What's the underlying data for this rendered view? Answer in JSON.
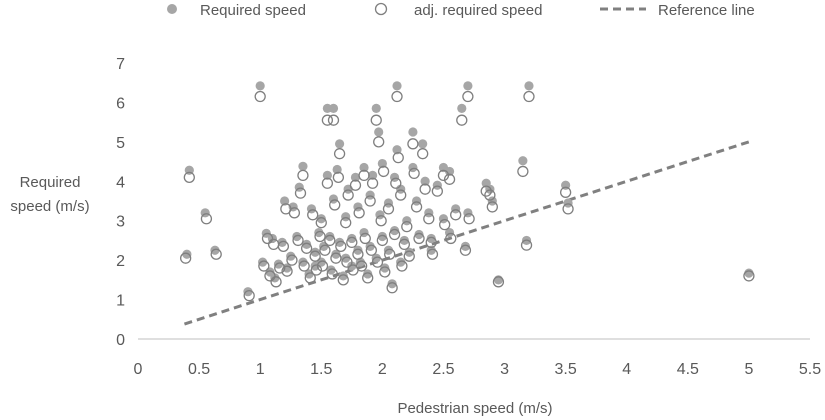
{
  "chart_data": {
    "type": "scatter",
    "xlabel": "Pedestrian speed (m/s)",
    "ylabel_lines": [
      "Required",
      "speed (m/s)"
    ],
    "xlim": [
      0,
      5.5
    ],
    "ylim": [
      0,
      7
    ],
    "x_ticks": [
      "0",
      "0.5",
      "1",
      "1.5",
      "2",
      "2.5",
      "3",
      "3.5",
      "4",
      "4.5",
      "5",
      "5.5"
    ],
    "y_ticks": [
      "0",
      "1",
      "2",
      "3",
      "4",
      "5",
      "6",
      "7"
    ],
    "grid": false,
    "legend_position": "top",
    "colors": {
      "filled": "#a6a6a6",
      "hollow": "#7f7f7f",
      "reference": "#808080",
      "axis": "#bfbfbf"
    },
    "series": [
      {
        "name": "Required speed",
        "marker": "filled-circle",
        "points": [
          [
            0.4,
            2.15
          ],
          [
            0.42,
            4.28
          ],
          [
            0.55,
            3.2
          ],
          [
            0.63,
            2.25
          ],
          [
            0.9,
            1.2
          ],
          [
            1.0,
            6.42
          ],
          [
            1.02,
            1.95
          ],
          [
            1.05,
            2.68
          ],
          [
            1.08,
            1.7
          ],
          [
            1.1,
            2.55
          ],
          [
            1.12,
            1.55
          ],
          [
            1.15,
            1.9
          ],
          [
            1.18,
            2.45
          ],
          [
            1.2,
            3.5
          ],
          [
            1.22,
            1.8
          ],
          [
            1.25,
            2.1
          ],
          [
            1.27,
            3.35
          ],
          [
            1.3,
            2.6
          ],
          [
            1.32,
            3.85
          ],
          [
            1.35,
            4.38
          ],
          [
            1.35,
            1.95
          ],
          [
            1.38,
            2.4
          ],
          [
            1.4,
            1.65
          ],
          [
            1.42,
            3.3
          ],
          [
            1.45,
            2.2
          ],
          [
            1.45,
            1.85
          ],
          [
            1.48,
            2.7
          ],
          [
            1.5,
            3.05
          ],
          [
            1.5,
            1.95
          ],
          [
            1.52,
            2.35
          ],
          [
            1.55,
            5.85
          ],
          [
            1.55,
            4.15
          ],
          [
            1.57,
            2.6
          ],
          [
            1.58,
            1.75
          ],
          [
            1.6,
            5.85
          ],
          [
            1.6,
            3.55
          ],
          [
            1.62,
            2.15
          ],
          [
            1.63,
            4.3
          ],
          [
            1.65,
            4.95
          ],
          [
            1.65,
            2.45
          ],
          [
            1.68,
            1.6
          ],
          [
            1.7,
            3.1
          ],
          [
            1.7,
            2.05
          ],
          [
            1.72,
            3.8
          ],
          [
            1.75,
            2.55
          ],
          [
            1.75,
            1.85
          ],
          [
            1.78,
            4.1
          ],
          [
            1.8,
            2.25
          ],
          [
            1.8,
            3.35
          ],
          [
            1.82,
            1.95
          ],
          [
            1.85,
            4.35
          ],
          [
            1.85,
            2.7
          ],
          [
            1.88,
            1.65
          ],
          [
            1.9,
            3.65
          ],
          [
            1.9,
            2.35
          ],
          [
            1.92,
            4.15
          ],
          [
            1.95,
            5.85
          ],
          [
            1.95,
            2.05
          ],
          [
            1.97,
            5.25
          ],
          [
            1.98,
            3.15
          ],
          [
            2.0,
            2.6
          ],
          [
            2.0,
            4.45
          ],
          [
            2.02,
            1.8
          ],
          [
            2.05,
            3.45
          ],
          [
            2.05,
            2.25
          ],
          [
            2.08,
            1.4
          ],
          [
            2.1,
            2.75
          ],
          [
            2.1,
            4.1
          ],
          [
            2.12,
            6.42
          ],
          [
            2.12,
            4.8
          ],
          [
            2.15,
            3.8
          ],
          [
            2.15,
            1.95
          ],
          [
            2.18,
            2.5
          ],
          [
            2.2,
            3.0
          ],
          [
            2.22,
            2.2
          ],
          [
            2.25,
            5.25
          ],
          [
            2.25,
            4.35
          ],
          [
            2.28,
            3.5
          ],
          [
            2.3,
            2.65
          ],
          [
            2.33,
            4.95
          ],
          [
            2.35,
            4.0
          ],
          [
            2.38,
            3.2
          ],
          [
            2.4,
            2.55
          ],
          [
            2.4,
            2.25
          ],
          [
            2.45,
            3.9
          ],
          [
            2.5,
            4.35
          ],
          [
            2.5,
            3.05
          ],
          [
            2.55,
            4.25
          ],
          [
            2.55,
            2.7
          ],
          [
            2.6,
            3.3
          ],
          [
            2.65,
            5.85
          ],
          [
            2.68,
            2.35
          ],
          [
            2.7,
            6.42
          ],
          [
            2.7,
            3.2
          ],
          [
            2.85,
            3.95
          ],
          [
            2.88,
            3.8
          ],
          [
            2.9,
            3.5
          ],
          [
            2.95,
            1.5
          ],
          [
            3.15,
            4.52
          ],
          [
            3.18,
            2.5
          ],
          [
            3.2,
            6.42
          ],
          [
            3.5,
            3.9
          ],
          [
            3.52,
            3.45
          ],
          [
            5.0,
            1.67
          ]
        ]
      },
      {
        "name": "adj. required speed",
        "marker": "hollow-circle",
        "points": [
          [
            0.39,
            2.05
          ],
          [
            0.42,
            4.1
          ],
          [
            0.56,
            3.05
          ],
          [
            0.64,
            2.15
          ],
          [
            0.91,
            1.1
          ],
          [
            1.0,
            6.15
          ],
          [
            1.03,
            1.85
          ],
          [
            1.06,
            2.55
          ],
          [
            1.08,
            1.6
          ],
          [
            1.11,
            2.4
          ],
          [
            1.13,
            1.45
          ],
          [
            1.16,
            1.8
          ],
          [
            1.19,
            2.35
          ],
          [
            1.21,
            3.3
          ],
          [
            1.22,
            1.72
          ],
          [
            1.26,
            2.0
          ],
          [
            1.28,
            3.2
          ],
          [
            1.31,
            2.5
          ],
          [
            1.33,
            3.7
          ],
          [
            1.35,
            4.15
          ],
          [
            1.36,
            1.85
          ],
          [
            1.38,
            2.3
          ],
          [
            1.41,
            1.55
          ],
          [
            1.43,
            3.15
          ],
          [
            1.45,
            2.1
          ],
          [
            1.46,
            1.75
          ],
          [
            1.49,
            2.6
          ],
          [
            1.5,
            2.95
          ],
          [
            1.51,
            1.85
          ],
          [
            1.53,
            2.25
          ],
          [
            1.55,
            5.55
          ],
          [
            1.55,
            3.95
          ],
          [
            1.57,
            2.5
          ],
          [
            1.59,
            1.65
          ],
          [
            1.6,
            5.55
          ],
          [
            1.61,
            3.4
          ],
          [
            1.62,
            2.05
          ],
          [
            1.64,
            4.1
          ],
          [
            1.65,
            4.7
          ],
          [
            1.66,
            2.35
          ],
          [
            1.68,
            1.5
          ],
          [
            1.7,
            2.95
          ],
          [
            1.71,
            1.95
          ],
          [
            1.72,
            3.65
          ],
          [
            1.75,
            2.45
          ],
          [
            1.76,
            1.75
          ],
          [
            1.78,
            3.9
          ],
          [
            1.8,
            2.15
          ],
          [
            1.81,
            3.2
          ],
          [
            1.83,
            1.85
          ],
          [
            1.85,
            4.15
          ],
          [
            1.86,
            2.55
          ],
          [
            1.88,
            1.55
          ],
          [
            1.9,
            3.5
          ],
          [
            1.91,
            2.25
          ],
          [
            1.92,
            3.95
          ],
          [
            1.95,
            5.55
          ],
          [
            1.96,
            1.95
          ],
          [
            1.97,
            5.0
          ],
          [
            1.99,
            3.0
          ],
          [
            2.0,
            2.5
          ],
          [
            2.01,
            4.25
          ],
          [
            2.02,
            1.7
          ],
          [
            2.05,
            3.3
          ],
          [
            2.06,
            2.15
          ],
          [
            2.08,
            1.3
          ],
          [
            2.1,
            2.65
          ],
          [
            2.11,
            3.95
          ],
          [
            2.12,
            6.15
          ],
          [
            2.13,
            4.6
          ],
          [
            2.15,
            3.65
          ],
          [
            2.16,
            1.85
          ],
          [
            2.18,
            2.4
          ],
          [
            2.2,
            2.85
          ],
          [
            2.22,
            2.1
          ],
          [
            2.25,
            4.95
          ],
          [
            2.26,
            4.2
          ],
          [
            2.28,
            3.35
          ],
          [
            2.3,
            2.55
          ],
          [
            2.33,
            4.7
          ],
          [
            2.35,
            3.8
          ],
          [
            2.38,
            3.05
          ],
          [
            2.4,
            2.45
          ],
          [
            2.41,
            2.15
          ],
          [
            2.45,
            3.75
          ],
          [
            2.5,
            4.15
          ],
          [
            2.51,
            2.9
          ],
          [
            2.55,
            4.05
          ],
          [
            2.56,
            2.55
          ],
          [
            2.6,
            3.15
          ],
          [
            2.65,
            5.55
          ],
          [
            2.68,
            2.25
          ],
          [
            2.7,
            6.15
          ],
          [
            2.71,
            3.05
          ],
          [
            2.85,
            3.75
          ],
          [
            2.88,
            3.65
          ],
          [
            2.9,
            3.35
          ],
          [
            2.95,
            1.45
          ],
          [
            3.15,
            4.25
          ],
          [
            3.18,
            2.38
          ],
          [
            3.2,
            6.15
          ],
          [
            3.5,
            3.72
          ],
          [
            3.52,
            3.3
          ],
          [
            5.0,
            1.6
          ]
        ]
      },
      {
        "name": "Reference line",
        "marker": "dashed-line",
        "points": [
          [
            0.38,
            0.38
          ],
          [
            5.0,
            5.0
          ]
        ]
      }
    ]
  }
}
